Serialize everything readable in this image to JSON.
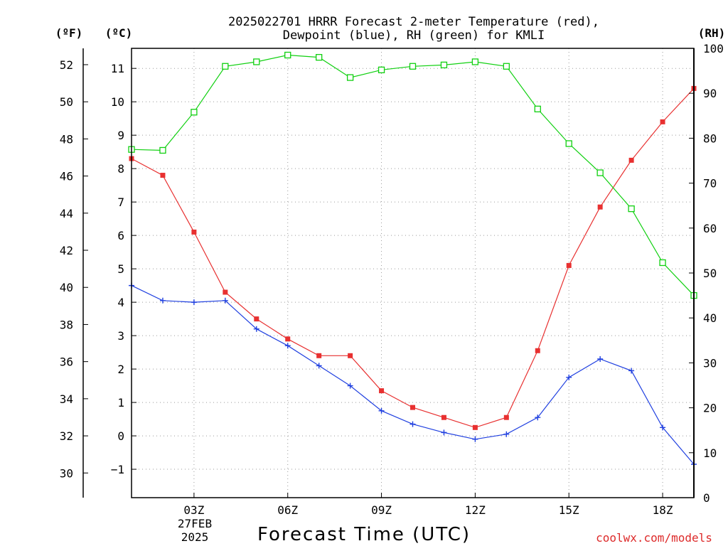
{
  "chart_data": {
    "type": "line",
    "title_lines": [
      "2025022701 HRRR Forecast 2-meter Temperature (red),",
      "Dewpoint (blue), RH (green) for KMLI"
    ],
    "xlabel": "Forecast Time (UTC)",
    "x_ticks": [
      "03Z",
      "06Z",
      "09Z",
      "12Z",
      "15Z",
      "18Z"
    ],
    "x_date_lines": [
      "27FEB",
      "2025"
    ],
    "x_hours": [
      1,
      2,
      3,
      4,
      5,
      6,
      7,
      8,
      9,
      10,
      11,
      12,
      13,
      14,
      15,
      16,
      17,
      18,
      19
    ],
    "xlim": [
      1,
      19
    ],
    "left_f_axis": {
      "label": "(ºF)",
      "ticks": [
        30,
        32,
        34,
        36,
        38,
        40,
        42,
        44,
        46,
        48,
        50,
        52
      ]
    },
    "left_c_axis": {
      "label": "(ºC)",
      "ticks": [
        -1,
        0,
        1,
        2,
        3,
        4,
        5,
        6,
        7,
        8,
        9,
        10,
        11
      ],
      "ylim": [
        -1.85,
        11.6
      ]
    },
    "right_rh_axis": {
      "label": "(RH)",
      "ticks": [
        0,
        10,
        20,
        30,
        40,
        50,
        60,
        70,
        80,
        90,
        100
      ],
      "ylim": [
        0,
        100
      ]
    },
    "grid": true,
    "series": [
      {
        "name": "Temperature",
        "axis": "c",
        "color": "#e83030",
        "marker": "filled-square",
        "values": [
          8.3,
          7.8,
          6.1,
          4.3,
          3.5,
          2.9,
          2.4,
          2.4,
          1.35,
          0.85,
          0.55,
          0.25,
          0.55,
          2.55,
          5.1,
          6.85,
          8.25,
          9.4,
          10.4
        ]
      },
      {
        "name": "Dewpoint",
        "axis": "c",
        "color": "#2040e0",
        "marker": "plus",
        "values": [
          4.5,
          4.05,
          4.0,
          4.05,
          3.2,
          2.7,
          2.1,
          1.5,
          0.75,
          0.35,
          0.1,
          -0.1,
          0.05,
          0.55,
          1.75,
          2.3,
          1.95,
          0.25,
          -0.85
        ]
      },
      {
        "name": "RH",
        "axis": "rh",
        "color": "#10d010",
        "marker": "open-square",
        "values": [
          77.5,
          77.3,
          85.8,
          96.0,
          97.0,
          98.5,
          98.0,
          93.5,
          95.2,
          96.0,
          96.3,
          97.0,
          96.0,
          86.5,
          78.8,
          72.3,
          64.3,
          52.3,
          45.0
        ]
      }
    ],
    "credit": "coolwx.com/models"
  }
}
